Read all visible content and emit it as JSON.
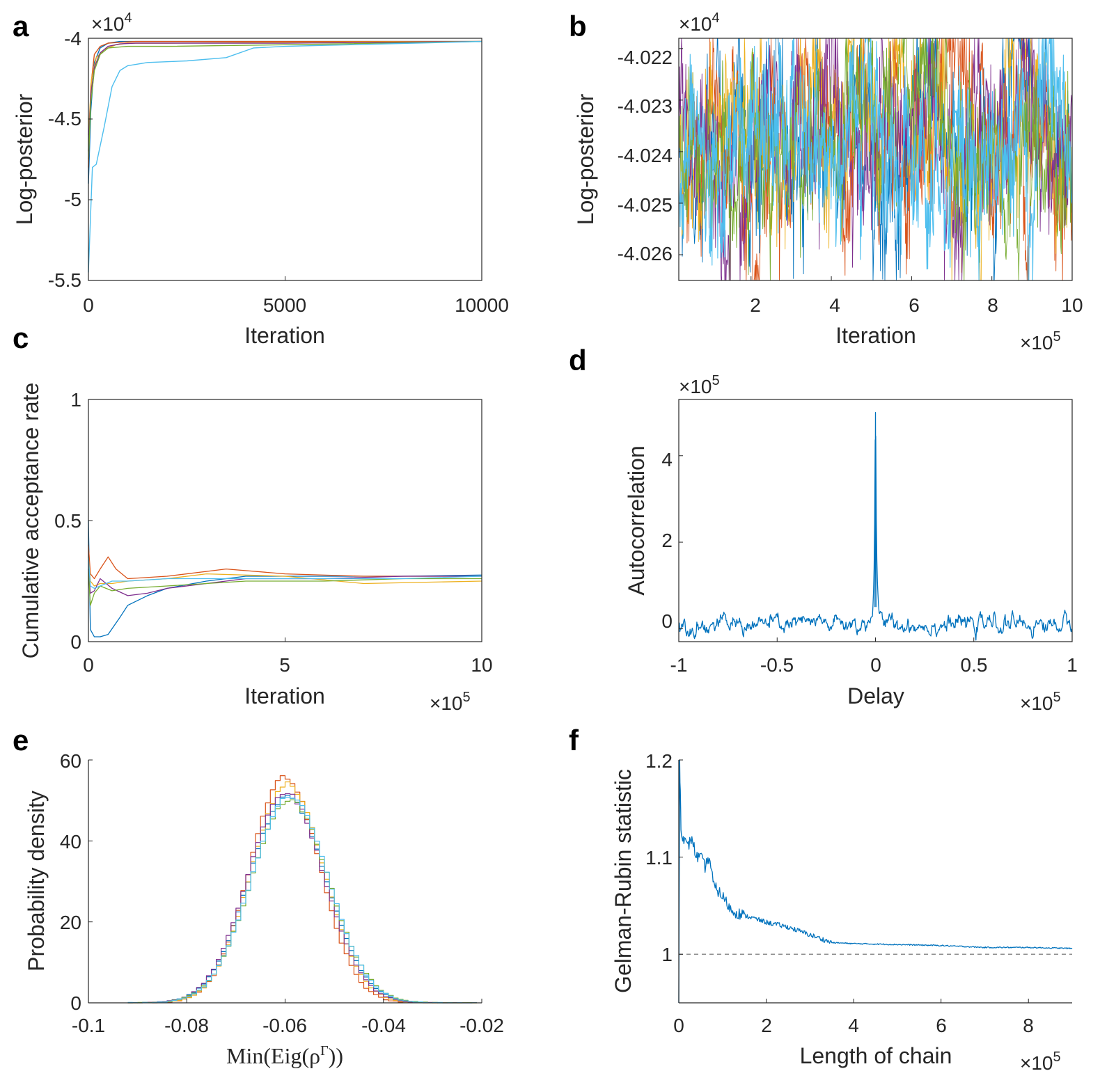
{
  "colors": {
    "chain1": "#0072BD",
    "chain2": "#D95319",
    "chain3": "#EDB120",
    "chain4": "#7E2F8E",
    "chain5": "#77AC30",
    "chain6": "#4DBEEE",
    "dashed_reference": "#808080",
    "axes": "#262626"
  },
  "chart_data": [
    {
      "panel": "a",
      "type": "line",
      "xlabel": "Iteration",
      "ylabel": "Log-posterior",
      "xlim": [
        0,
        10000
      ],
      "ylim": [
        -5.5,
        -4
      ],
      "y_multiplier": "×10^4",
      "xticks": [
        "0",
        "5000",
        "10000"
      ],
      "yticks": [
        "-5.5",
        "-5",
        "-4.5",
        "-4"
      ],
      "series": [
        {
          "x": [
            0,
            60,
            150,
            300,
            500,
            800,
            1200,
            2000,
            5000,
            10000
          ],
          "y": [
            -4.9,
            -4.45,
            -4.15,
            -4.06,
            -4.03,
            -4.02,
            -4.02,
            -4.02,
            -4.02,
            -4.02
          ]
        },
        {
          "x": [
            0,
            60,
            150,
            300,
            500,
            800,
            1200,
            2000,
            5000,
            10000
          ],
          "y": [
            -4.8,
            -4.3,
            -4.1,
            -4.05,
            -4.03,
            -4.025,
            -4.02,
            -4.02,
            -4.02,
            -4.02
          ]
        },
        {
          "x": [
            0,
            80,
            200,
            400,
            700,
            1000,
            2000,
            5000,
            10000
          ],
          "y": [
            -4.6,
            -4.25,
            -4.12,
            -4.07,
            -4.04,
            -4.03,
            -4.03,
            -4.025,
            -4.02
          ]
        },
        {
          "x": [
            0,
            60,
            150,
            300,
            500,
            800,
            1200,
            2000,
            5000,
            10000
          ],
          "y": [
            -4.7,
            -4.35,
            -4.18,
            -4.09,
            -4.05,
            -4.035,
            -4.03,
            -4.03,
            -4.03,
            -4.02
          ]
        },
        {
          "x": [
            0,
            60,
            150,
            300,
            500,
            1000,
            2000,
            5000,
            10000
          ],
          "y": [
            -4.75,
            -4.4,
            -4.2,
            -4.1,
            -4.06,
            -4.05,
            -4.05,
            -4.04,
            -4.02
          ]
        },
        {
          "x": [
            0,
            100,
            200,
            400,
            600,
            800,
            1000,
            1500,
            2500,
            3500,
            4200,
            5000,
            10000
          ],
          "y": [
            -5.45,
            -4.8,
            -4.78,
            -4.55,
            -4.3,
            -4.2,
            -4.17,
            -4.15,
            -4.14,
            -4.12,
            -4.06,
            -4.05,
            -4.02
          ]
        }
      ]
    },
    {
      "panel": "b",
      "type": "line",
      "xlabel": "Iteration",
      "ylabel": "Log-posterior",
      "x_multiplier": "×10^5",
      "y_multiplier": "×10^4",
      "xlim": [
        0.2,
        10
      ],
      "ylim": [
        -4.0265,
        -4.0218
      ],
      "xticks": [
        "2",
        "4",
        "6",
        "8",
        "10"
      ],
      "yticks": [
        "-4.026",
        "-4.025",
        "-4.024",
        "-4.023",
        "-4.022"
      ],
      "series_mean": -4.0238,
      "series_range": [
        -4.0265,
        -4.0218
      ],
      "note_series": "six overlapping noisy trace chains"
    },
    {
      "panel": "c",
      "type": "line",
      "xlabel": "Iteration",
      "ylabel": "Cumulative acceptance rate",
      "x_multiplier": "×10^5",
      "xlim": [
        0,
        10
      ],
      "ylim": [
        0,
        1
      ],
      "xticks": [
        "0",
        "5",
        "10"
      ],
      "yticks": [
        "0",
        "0.5",
        "1"
      ],
      "series": [
        {
          "x": [
            0,
            0.05,
            0.15,
            0.3,
            0.5,
            0.8,
            1,
            1.5,
            2,
            3,
            4,
            6,
            8,
            10
          ],
          "y": [
            0.5,
            0.05,
            0.02,
            0.02,
            0.03,
            0.1,
            0.15,
            0.19,
            0.22,
            0.25,
            0.27,
            0.27,
            0.27,
            0.275
          ]
        },
        {
          "x": [
            0,
            0.05,
            0.15,
            0.3,
            0.5,
            0.7,
            1,
            2,
            3.5,
            5,
            7,
            10
          ],
          "y": [
            0.4,
            0.28,
            0.26,
            0.3,
            0.35,
            0.3,
            0.26,
            0.27,
            0.3,
            0.28,
            0.27,
            0.27
          ]
        },
        {
          "x": [
            0,
            0.05,
            0.15,
            0.3,
            0.6,
            1,
            2,
            3,
            5,
            7,
            10
          ],
          "y": [
            0.35,
            0.25,
            0.23,
            0.24,
            0.24,
            0.25,
            0.26,
            0.28,
            0.27,
            0.24,
            0.25
          ]
        },
        {
          "x": [
            0,
            0.05,
            0.15,
            0.3,
            0.6,
            1,
            1.5,
            2,
            4,
            6,
            8,
            10
          ],
          "y": [
            0.3,
            0.2,
            0.21,
            0.26,
            0.22,
            0.19,
            0.2,
            0.22,
            0.26,
            0.26,
            0.27,
            0.27
          ]
        },
        {
          "x": [
            0,
            0.05,
            0.15,
            0.3,
            0.6,
            1,
            2,
            3,
            4,
            6,
            8,
            10
          ],
          "y": [
            0.3,
            0.15,
            0.2,
            0.23,
            0.21,
            0.22,
            0.23,
            0.24,
            0.25,
            0.25,
            0.26,
            0.26
          ]
        },
        {
          "x": [
            0,
            0.05,
            0.15,
            0.3,
            0.6,
            1,
            2,
            4,
            6,
            8,
            10
          ],
          "y": [
            0.35,
            0.23,
            0.22,
            0.23,
            0.25,
            0.25,
            0.26,
            0.26,
            0.26,
            0.26,
            0.27
          ]
        }
      ]
    },
    {
      "panel": "d",
      "type": "line",
      "xlabel": "Delay",
      "ylabel": "Autocorrelation",
      "x_multiplier": "×10^5",
      "y_multiplier": "×10^5",
      "xlim": [
        -1,
        1
      ],
      "ylim": [
        -0.3,
        5.3
      ],
      "xticks": [
        "-1",
        "-0.5",
        "0",
        "0.5",
        "1"
      ],
      "yticks": [
        "0",
        "2",
        "4"
      ],
      "peak": {
        "x": 0,
        "y": 5.0
      },
      "baseline_mean": 0.1,
      "baseline_range": [
        -0.2,
        0.45
      ]
    },
    {
      "panel": "e",
      "type": "line",
      "xlabel": "Min(Eig(ρ^Γ))",
      "ylabel": "Probability density",
      "xlim": [
        -0.1,
        -0.02
      ],
      "ylim": [
        0,
        60
      ],
      "xticks": [
        "-0.1",
        "-0.08",
        "-0.06",
        "-0.04",
        "-0.02"
      ],
      "yticks": [
        "0",
        "20",
        "40",
        "60"
      ],
      "distribution": "stepwise histograms, ~Gaussian",
      "series": [
        {
          "mean": -0.0595,
          "sd": 0.0078,
          "peak": 51
        },
        {
          "mean": -0.06,
          "sd": 0.0071,
          "peak": 56
        },
        {
          "mean": -0.0595,
          "sd": 0.0074,
          "peak": 54
        },
        {
          "mean": -0.0598,
          "sd": 0.0077,
          "peak": 52
        },
        {
          "mean": -0.059,
          "sd": 0.0079,
          "peak": 50
        },
        {
          "mean": -0.059,
          "sd": 0.0078,
          "peak": 51
        }
      ]
    },
    {
      "panel": "f",
      "type": "line",
      "xlabel": "Length of chain",
      "ylabel": "Gelman-Rubin statistic",
      "x_multiplier": "×10^5",
      "xlim": [
        0,
        9
      ],
      "ylim": [
        0.95,
        1.2
      ],
      "xticks": [
        "0",
        "2",
        "4",
        "6",
        "8"
      ],
      "yticks": [
        "1",
        "1.1",
        "1.2"
      ],
      "reference_line": 1.0,
      "series": [
        {
          "x": [
            0.02,
            0.05,
            0.1,
            0.2,
            0.3,
            0.4,
            0.5,
            0.6,
            0.7,
            0.8,
            1.0,
            1.2,
            1.5,
            2.0,
            2.5,
            3.0,
            3.5,
            4.0,
            5.0,
            6.0,
            7.0,
            8.0,
            9.0
          ],
          "y": [
            1.2,
            1.13,
            1.12,
            1.11,
            1.12,
            1.1,
            1.1,
            1.09,
            1.1,
            1.07,
            1.06,
            1.045,
            1.04,
            1.033,
            1.028,
            1.02,
            1.012,
            1.011,
            1.01,
            1.009,
            1.007,
            1.007,
            1.006
          ]
        }
      ]
    }
  ],
  "panels": {
    "a": {
      "letter": "a",
      "xlabel": "Iteration",
      "ylabel": "Log-posterior",
      "yexp": "4",
      "xtick_labels": [
        "0",
        "5000",
        "10000"
      ],
      "ytick_labels": [
        "-5.5",
        "-5",
        "-4.5",
        "-4"
      ]
    },
    "b": {
      "letter": "b",
      "xlabel": "Iteration",
      "ylabel": "Log-posterior",
      "yexp": "4",
      "xexp": "5",
      "xtick_labels": [
        "2",
        "4",
        "6",
        "8",
        "10"
      ],
      "ytick_labels": [
        "-4.026",
        "-4.025",
        "-4.024",
        "-4.023",
        "-4.022"
      ]
    },
    "c": {
      "letter": "c",
      "xlabel": "Iteration",
      "ylabel": "Cumulative acceptance rate",
      "xexp": "5",
      "xtick_labels": [
        "0",
        "5",
        "10"
      ],
      "ytick_labels": [
        "0",
        "0.5",
        "1"
      ]
    },
    "d": {
      "letter": "d",
      "xlabel": "Delay",
      "ylabel": "Autocorrelation",
      "yexp": "5",
      "xexp": "5",
      "xtick_labels": [
        "-1",
        "-0.5",
        "0",
        "0.5",
        "1"
      ],
      "ytick_labels": [
        "0",
        "2",
        "4"
      ]
    },
    "e": {
      "letter": "e",
      "xlabel": "Min(Eig(ρ",
      "xlabel_sup": "Γ",
      "xlabel_end": "))",
      "ylabel": "Probability density",
      "xtick_labels": [
        "-0.1",
        "-0.08",
        "-0.06",
        "-0.04",
        "-0.02"
      ],
      "ytick_labels": [
        "0",
        "20",
        "40",
        "60"
      ]
    },
    "f": {
      "letter": "f",
      "xlabel": "Length of chain",
      "ylabel": "Gelman-Rubin statistic",
      "xexp": "5",
      "xtick_labels": [
        "0",
        "2",
        "4",
        "6",
        "8"
      ],
      "ytick_labels": [
        "1",
        "1.1",
        "1.2"
      ]
    }
  },
  "multiplier_base": "×10"
}
